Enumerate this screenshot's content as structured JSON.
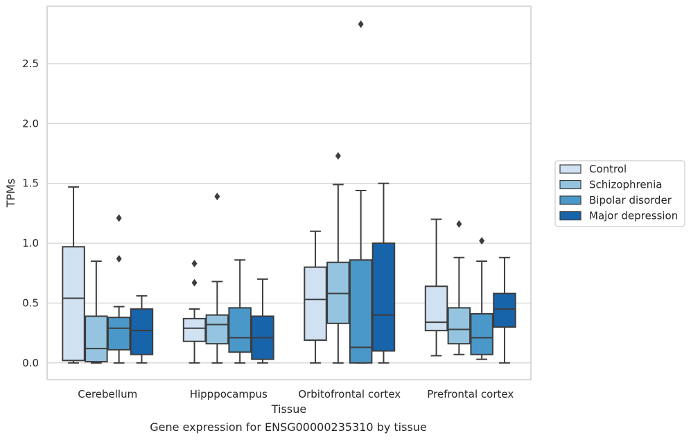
{
  "chart_data": {
    "type": "box",
    "xlabel": "Tissue",
    "ylabel": "TPMs",
    "caption": "Gene expression for ENSG00000235310 by tissue",
    "categories": [
      "Cerebellum",
      "Hipppocampus",
      "Orbitofrontal cortex",
      "Prefrontal cortex"
    ],
    "ylim": [
      -0.14,
      2.98
    ],
    "yticks": [
      "0.0",
      "0.5",
      "1.0",
      "1.5",
      "2.0",
      "2.5"
    ],
    "grid": true,
    "legend_position": "right",
    "series": [
      {
        "name": "Control",
        "color": "#d0e1f2",
        "boxes": [
          {
            "min": 0.0,
            "q1": 0.02,
            "median": 0.54,
            "q3": 0.97,
            "max": 1.47,
            "outliers": []
          },
          {
            "min": 0.0,
            "q1": 0.18,
            "median": 0.29,
            "q3": 0.37,
            "max": 0.45,
            "outliers": [
              0.67,
              0.83
            ]
          },
          {
            "min": 0.0,
            "q1": 0.19,
            "median": 0.53,
            "q3": 0.8,
            "max": 1.1,
            "outliers": []
          },
          {
            "min": 0.06,
            "q1": 0.27,
            "median": 0.34,
            "q3": 0.64,
            "max": 1.2,
            "outliers": []
          }
        ]
      },
      {
        "name": "Schizophrenia",
        "color": "#94c4df",
        "boxes": [
          {
            "min": 0.0,
            "q1": 0.01,
            "median": 0.12,
            "q3": 0.39,
            "max": 0.85,
            "outliers": []
          },
          {
            "min": 0.0,
            "q1": 0.16,
            "median": 0.32,
            "q3": 0.4,
            "max": 0.68,
            "outliers": [
              1.39
            ]
          },
          {
            "min": 0.0,
            "q1": 0.33,
            "median": 0.58,
            "q3": 0.84,
            "max": 1.49,
            "outliers": [
              1.73
            ]
          },
          {
            "min": 0.07,
            "q1": 0.16,
            "median": 0.28,
            "q3": 0.46,
            "max": 0.88,
            "outliers": [
              1.16
            ]
          }
        ]
      },
      {
        "name": "Bipolar disorder",
        "color": "#4a98c9",
        "boxes": [
          {
            "min": 0.0,
            "q1": 0.11,
            "median": 0.29,
            "q3": 0.38,
            "max": 0.47,
            "outliers": [
              0.87,
              1.21
            ]
          },
          {
            "min": 0.0,
            "q1": 0.09,
            "median": 0.21,
            "q3": 0.46,
            "max": 0.86,
            "outliers": []
          },
          {
            "min": 0.0,
            "q1": 0.0,
            "median": 0.13,
            "q3": 0.86,
            "max": 1.44,
            "outliers": [
              2.83
            ]
          },
          {
            "min": 0.03,
            "q1": 0.07,
            "median": 0.21,
            "q3": 0.41,
            "max": 0.85,
            "outliers": [
              1.02
            ]
          }
        ]
      },
      {
        "name": "Major depression",
        "color": "#1764ab",
        "boxes": [
          {
            "min": 0.0,
            "q1": 0.07,
            "median": 0.27,
            "q3": 0.45,
            "max": 0.56,
            "outliers": []
          },
          {
            "min": 0.0,
            "q1": 0.03,
            "median": 0.21,
            "q3": 0.39,
            "max": 0.7,
            "outliers": []
          },
          {
            "min": 0.0,
            "q1": 0.1,
            "median": 0.4,
            "q3": 1.0,
            "max": 1.5,
            "outliers": []
          },
          {
            "min": 0.0,
            "q1": 0.3,
            "median": 0.45,
            "q3": 0.58,
            "max": 0.88,
            "outliers": []
          }
        ]
      }
    ]
  }
}
